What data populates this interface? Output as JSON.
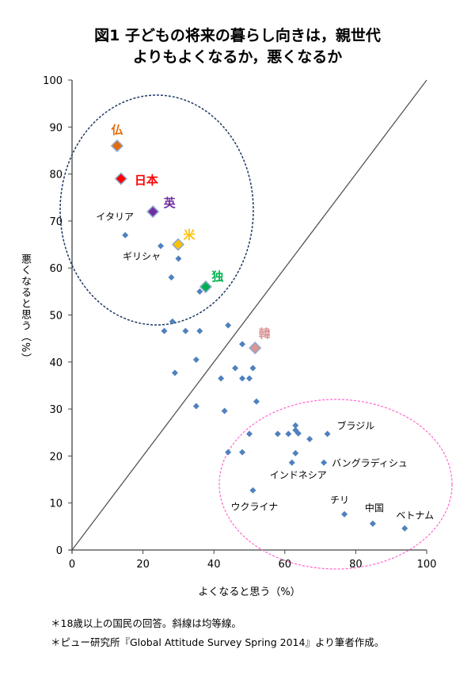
{
  "chart_data": {
    "type": "scatter",
    "title_line1": "図1  子どもの将来の暮らし向きは，親世代",
    "title_line2": "よりもよくなるか，悪くなるか",
    "xlabel": "よくなると思う（%）",
    "ylabel": "悪くなると思う（%）",
    "xlim": [
      0,
      100
    ],
    "ylim": [
      0,
      100
    ],
    "xticks": [
      "0",
      "20",
      "40",
      "60",
      "80",
      "100"
    ],
    "yticks": [
      "0",
      "10",
      "20",
      "30",
      "40",
      "50",
      "60",
      "70",
      "80",
      "90",
      "100"
    ],
    "grid": false,
    "reference_line": "y = x",
    "default_color": "#4F81BD",
    "highlighted": [
      {
        "label": "仏",
        "x": 12.7,
        "y": 86,
        "color": "#E36C0A"
      },
      {
        "label": "日本",
        "x": 13.8,
        "y": 79,
        "color": "#FF0000"
      },
      {
        "label": "英",
        "x": 22.8,
        "y": 72,
        "color": "#7030A0"
      },
      {
        "label": "米",
        "x": 29.9,
        "y": 65,
        "color": "#FFC000"
      },
      {
        "label": "独",
        "x": 37.7,
        "y": 56,
        "color": "#00B050"
      },
      {
        "label": "韓",
        "x": 51.6,
        "y": 43,
        "color": "#D99694"
      }
    ],
    "points": [
      {
        "label": "イタリア",
        "x": 15,
        "y": 67
      },
      {
        "label": "ギリシャ",
        "x": 25,
        "y": 64.7
      },
      {
        "x": 30,
        "y": 62
      },
      {
        "x": 28,
        "y": 58
      },
      {
        "x": 36,
        "y": 55
      },
      {
        "x": 28.3,
        "y": 48.6
      },
      {
        "x": 26,
        "y": 46.6
      },
      {
        "x": 32,
        "y": 46.6
      },
      {
        "x": 36,
        "y": 46.6
      },
      {
        "x": 44,
        "y": 47.8
      },
      {
        "x": 48,
        "y": 43.8
      },
      {
        "x": 35,
        "y": 40.5
      },
      {
        "x": 29,
        "y": 37.7
      },
      {
        "x": 46,
        "y": 38.7
      },
      {
        "x": 51,
        "y": 38.7
      },
      {
        "x": 42,
        "y": 36.5
      },
      {
        "x": 48,
        "y": 36.5
      },
      {
        "x": 50,
        "y": 36.5
      },
      {
        "x": 52,
        "y": 31.6
      },
      {
        "x": 35,
        "y": 30.6
      },
      {
        "x": 43,
        "y": 29.6
      },
      {
        "x": 50,
        "y": 24.7
      },
      {
        "x": 44,
        "y": 20.8
      },
      {
        "x": 48,
        "y": 20.8
      },
      {
        "x": 63,
        "y": 26.5
      },
      {
        "x": 63,
        "y": 25.5
      },
      {
        "x": 63.8,
        "y": 24.8
      },
      {
        "x": 58,
        "y": 24.7
      },
      {
        "x": 61,
        "y": 24.7
      },
      {
        "x": 67,
        "y": 23.6
      },
      {
        "label": "ブラジル",
        "x": 72,
        "y": 24.7
      },
      {
        "x": 63,
        "y": 20.6
      },
      {
        "label": "インドネシア",
        "x": 62,
        "y": 18.6
      },
      {
        "label": "バングラディシュ",
        "x": 71,
        "y": 18.6
      },
      {
        "label": "ウクライナ",
        "x": 51,
        "y": 12.7
      },
      {
        "label": "チリ",
        "x": 76.8,
        "y": 7.6
      },
      {
        "label": "中国",
        "x": 84.8,
        "y": 5.6
      },
      {
        "label": "ベトナム",
        "x": 93.8,
        "y": 4.6
      }
    ],
    "groups": [
      {
        "style": "dashed",
        "color": "#1F3864"
      },
      {
        "style": "dashed",
        "color": "#FF66CC"
      }
    ]
  },
  "notes": [
    "＊18歳以上の国民の回答。斜線は均等線。",
    "＊ピュー研究所『Global Attitude Survey Spring 2014』より筆者作成。"
  ]
}
